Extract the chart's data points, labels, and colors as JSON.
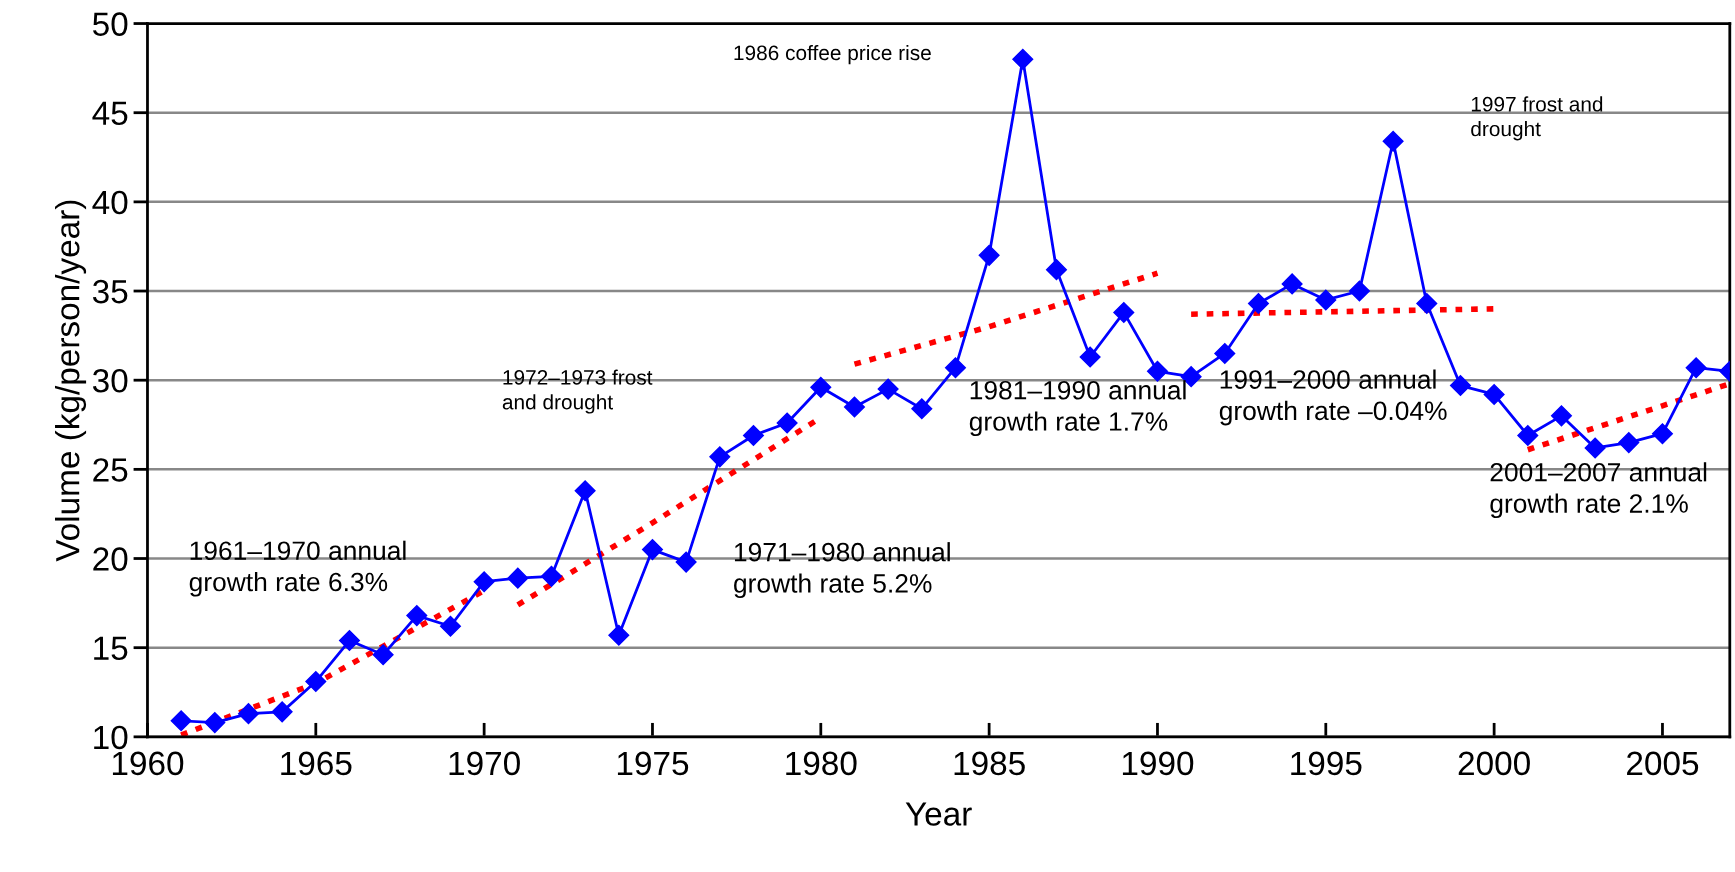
{
  "chart_data": {
    "type": "line",
    "xlabel": "Year",
    "ylabel": "Volume (kg/person/year)",
    "xlim": [
      1960,
      2007
    ],
    "xticks": [
      1960,
      1965,
      1970,
      1975,
      1980,
      1985,
      1990,
      1995,
      2000,
      2005
    ],
    "ylim": [
      10,
      50
    ],
    "yticks": [
      10,
      15,
      20,
      25,
      30,
      35,
      40,
      45,
      50
    ],
    "grid": "y",
    "legend": false,
    "series": [
      {
        "color": "#0000ff",
        "marker": "diamond",
        "line_style": "solid",
        "x": [
          1961,
          1962,
          1963,
          1964,
          1965,
          1966,
          1967,
          1968,
          1969,
          1970,
          1971,
          1972,
          1973,
          1974,
          1975,
          1976,
          1977,
          1978,
          1979,
          1980,
          1981,
          1982,
          1983,
          1984,
          1985,
          1986,
          1987,
          1988,
          1989,
          1990,
          1991,
          1992,
          1993,
          1994,
          1995,
          1996,
          1997,
          1998,
          1999,
          2000,
          2001,
          2002,
          2003,
          2004,
          2005,
          2006,
          2007
        ],
        "values": [
          10.9,
          10.8,
          11.3,
          11.4,
          13.1,
          15.4,
          14.6,
          16.8,
          16.2,
          18.7,
          18.9,
          19.0,
          23.8,
          15.7,
          20.5,
          19.8,
          25.7,
          26.9,
          27.6,
          29.6,
          28.5,
          29.5,
          28.4,
          30.7,
          37.0,
          48.0,
          36.2,
          31.3,
          33.8,
          30.5,
          30.2,
          31.5,
          34.3,
          35.4,
          34.5,
          35.0,
          43.4,
          34.3,
          29.7,
          29.2,
          26.9,
          28.0,
          26.2,
          26.5,
          27.0,
          30.7,
          30.5
        ]
      },
      {
        "color": "#ff0000",
        "marker": "none",
        "line_style": "dotted",
        "x": [
          1961,
          1965,
          1970
        ],
        "values": [
          10.1,
          13.0,
          18.2
        ]
      },
      {
        "color": "#ff0000",
        "marker": "none",
        "line_style": "dotted",
        "x": [
          1971,
          1975,
          1980
        ],
        "values": [
          17.4,
          22.0,
          27.9
        ]
      },
      {
        "color": "#ff0000",
        "marker": "none",
        "line_style": "dotted",
        "x": [
          1981,
          1985,
          1990
        ],
        "values": [
          30.9,
          33.0,
          36.0
        ]
      },
      {
        "color": "#ff0000",
        "marker": "none",
        "line_style": "dotted",
        "x": [
          1991,
          2000
        ],
        "values": [
          33.7,
          34.0
        ]
      },
      {
        "color": "#ff0000",
        "marker": "none",
        "line_style": "dotted",
        "x": [
          2001,
          2007
        ],
        "values": [
          26.1,
          29.8
        ]
      }
    ],
    "annotations": [
      "1961–1970 annual\ngrowth rate 6.3%",
      "1972–1973 frost\nand drought",
      "1971–1980 annual\ngrowth rate 5.2%",
      "1986 coffee price rise",
      "1981–1990 annual\ngrowth rate 1.7%",
      "1991–2000 annual\ngrowth rate –0.04%",
      "1997 frost and\ndrought",
      "2001–2007 annual\ngrowth rate 2.1%"
    ]
  }
}
